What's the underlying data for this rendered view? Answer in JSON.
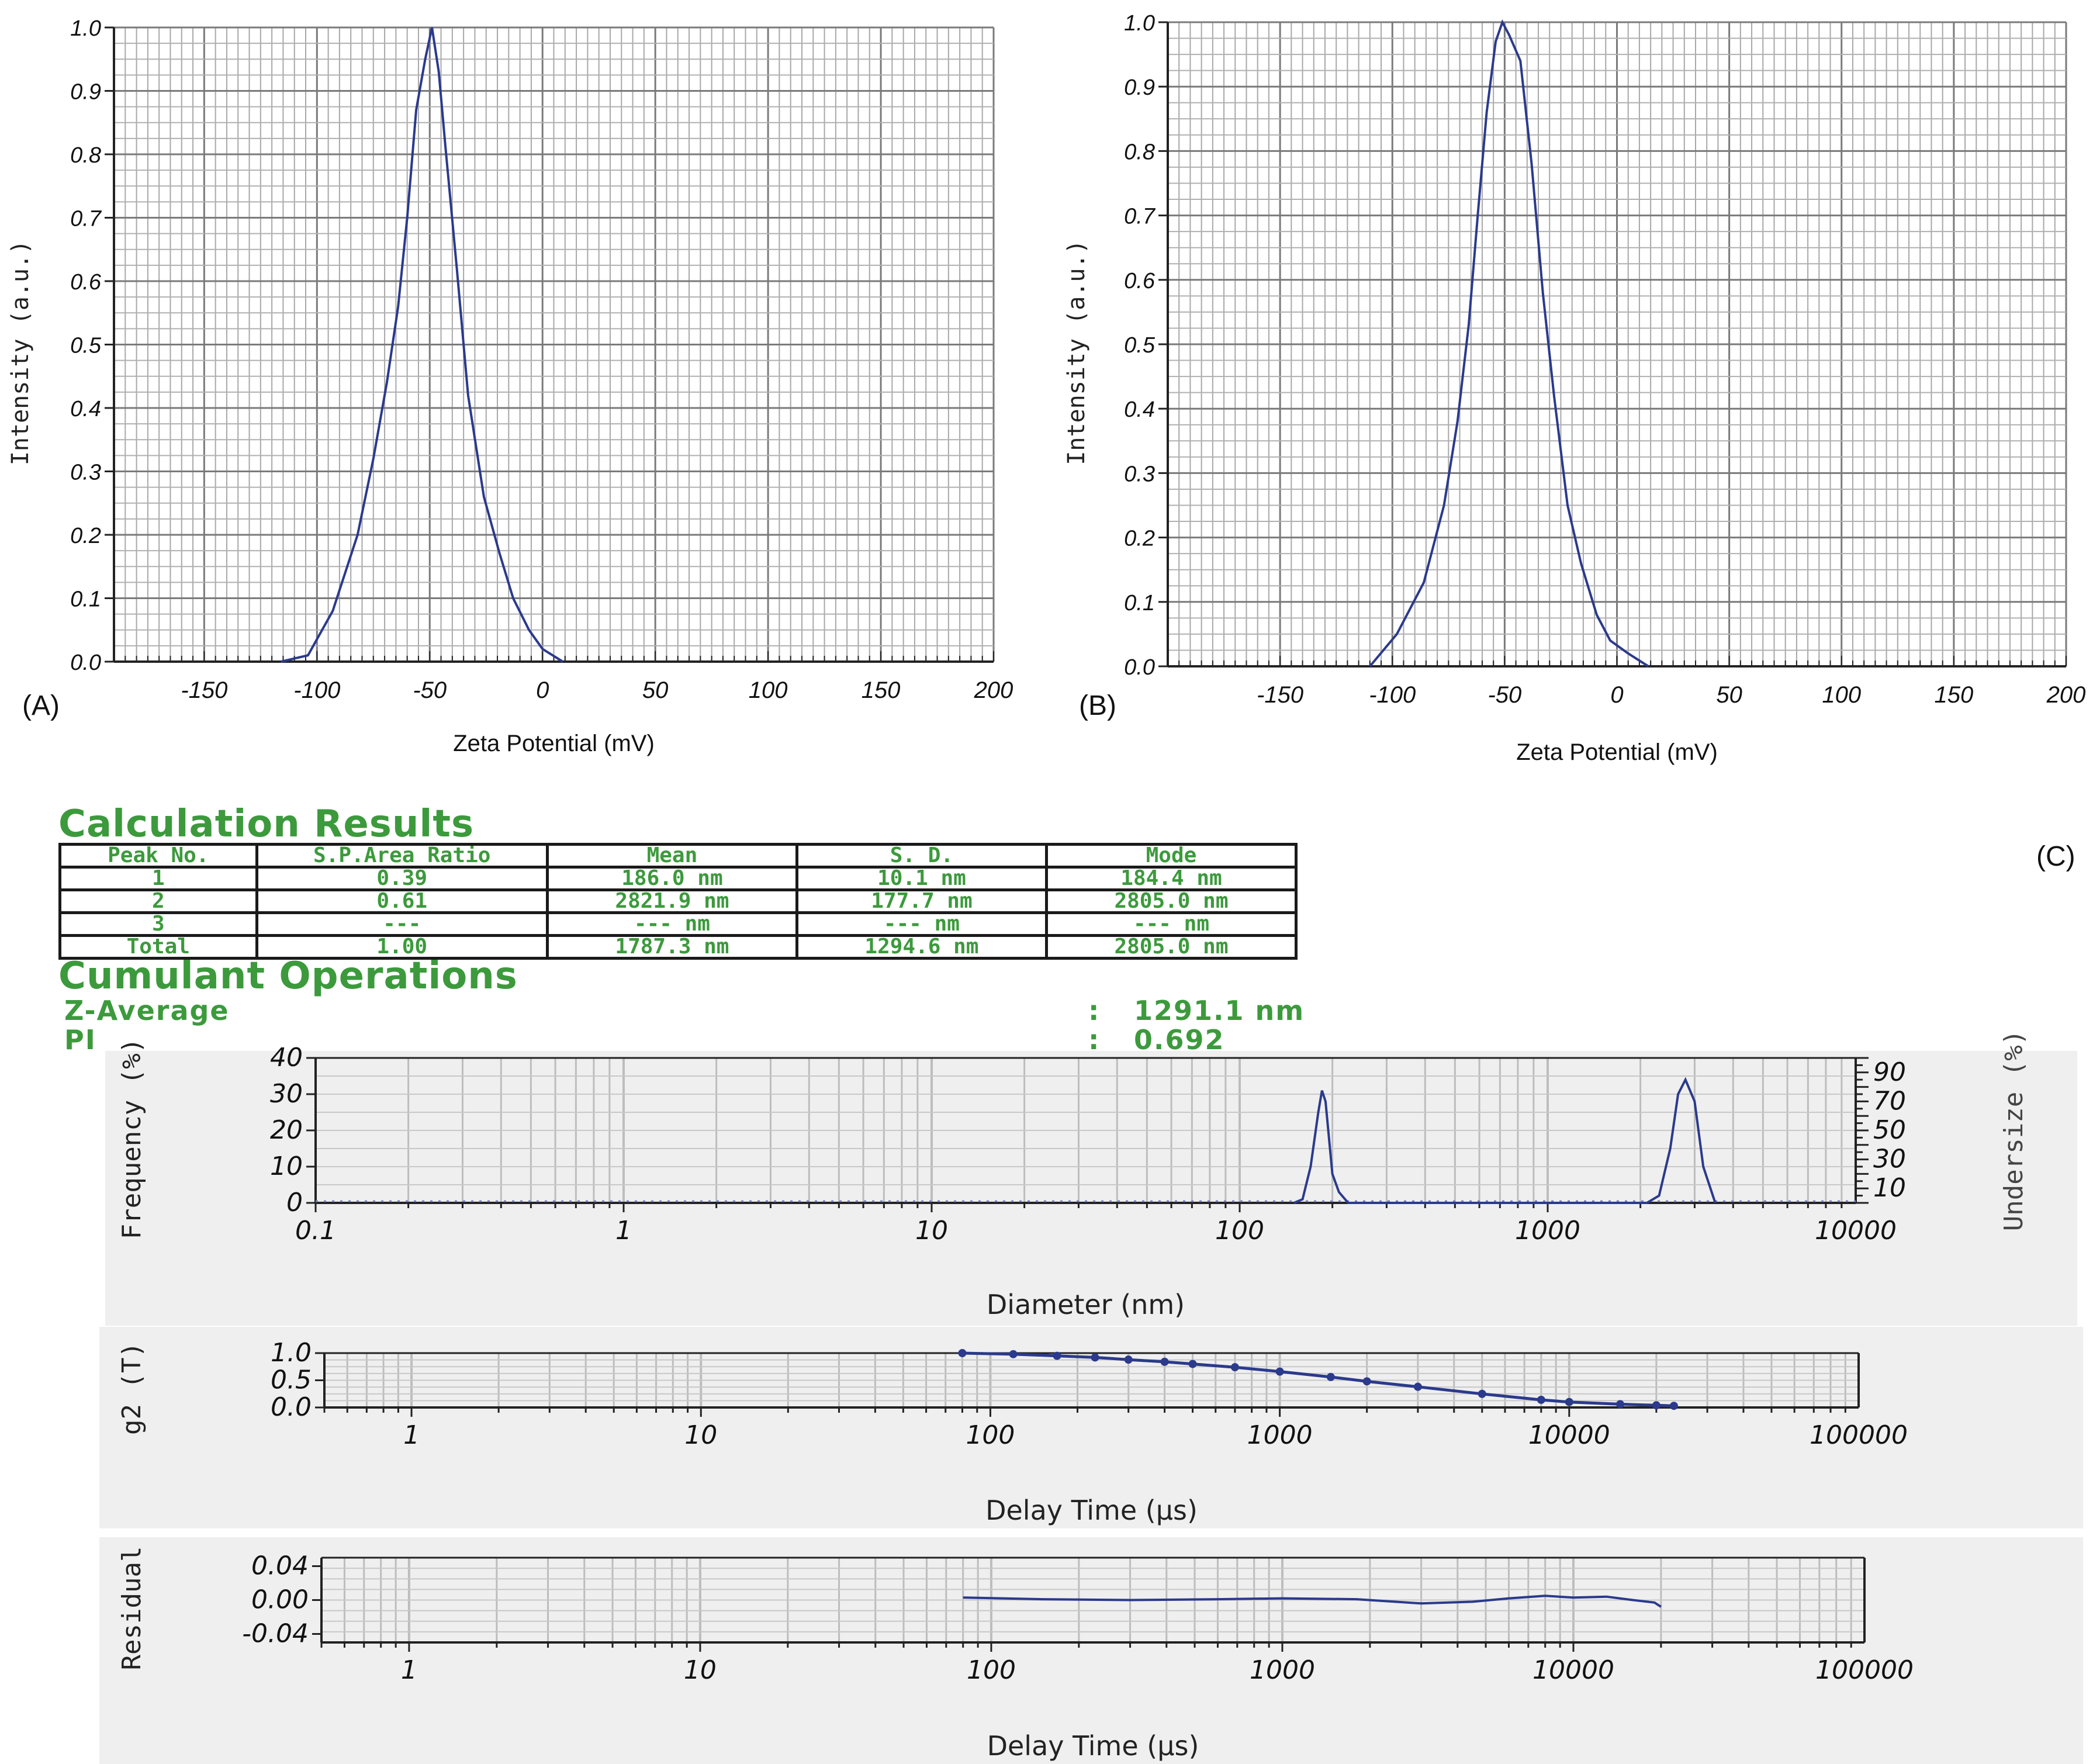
{
  "panel_labels": {
    "a": "(A)",
    "b": "(B)",
    "c": "(C)"
  },
  "results": {
    "title": "Calculation Results",
    "columns": [
      "Peak No.",
      "S.P.Area Ratio",
      "Mean",
      "S. D.",
      "Mode"
    ],
    "rows": [
      [
        "1",
        "0.39",
        "186.0 nm",
        "10.1 nm",
        "184.4 nm"
      ],
      [
        "2",
        "0.61",
        "2821.9 nm",
        "177.7 nm",
        "2805.0 nm"
      ],
      [
        "3",
        "---",
        "--- nm",
        "--- nm",
        "--- nm"
      ],
      [
        "Total",
        "1.00",
        "1787.3 nm",
        "1294.6 nm",
        "2805.0 nm"
      ]
    ]
  },
  "cumulant": {
    "title": "Cumulant Operations",
    "z_label": "Z-Average",
    "z_sep": ":",
    "z_value": "1291.1 nm",
    "pi_label": "PI",
    "pi_sep": ":",
    "pi_value": "0.692"
  },
  "colors": {
    "line": "#2b3a8c",
    "grid": "#9a9a9a",
    "green": "#3c9a3c",
    "panel_bg": "#efefef"
  },
  "chart_data": [
    {
      "id": "A",
      "type": "line",
      "xlabel": "Zeta Potential (mV)",
      "ylabel": "Intensity (a.u.)",
      "xlim": [
        -190,
        200
      ],
      "ylim": [
        0,
        1.0
      ],
      "xticks": [
        -150,
        -100,
        -50,
        0,
        50,
        100,
        150,
        200
      ],
      "xtick_labels": [
        "-150",
        "-100",
        "-50",
        "0",
        "50",
        "100",
        "150",
        "200"
      ],
      "yticks": [
        0,
        0.1,
        0.2,
        0.3,
        0.4,
        0.5,
        0.6,
        0.7,
        0.8,
        0.9,
        1.0
      ],
      "ytick_labels": [
        "0.0",
        "0.1",
        "0.2",
        "0.3",
        "0.4",
        "0.5",
        "0.6",
        "0.7",
        "0.8",
        "0.9",
        "1.0"
      ],
      "grid": true,
      "series": [
        {
          "x": [
            -116,
            -104,
            -93,
            -82,
            -75,
            -69,
            -64,
            -60,
            -56,
            -52,
            -49,
            -46,
            -43,
            -38,
            -33,
            -26,
            -19,
            -13,
            -6,
            0,
            9
          ],
          "y": [
            0,
            0.01,
            0.08,
            0.2,
            0.32,
            0.44,
            0.56,
            0.7,
            0.87,
            0.95,
            1.0,
            0.93,
            0.81,
            0.62,
            0.42,
            0.26,
            0.17,
            0.1,
            0.05,
            0.02,
            0
          ]
        }
      ]
    },
    {
      "id": "B",
      "type": "line",
      "xlabel": "Zeta Potential (mV)",
      "ylabel": "Intensity (a.u.)",
      "xlim": [
        -200,
        200
      ],
      "ylim": [
        0,
        1.0
      ],
      "xticks": [
        -150,
        -100,
        -50,
        0,
        50,
        100,
        150,
        200
      ],
      "xtick_labels": [
        "-150",
        "-100",
        "-50",
        "0",
        "50",
        "100",
        "150",
        "200"
      ],
      "yticks": [
        0,
        0.1,
        0.2,
        0.3,
        0.4,
        0.5,
        0.6,
        0.7,
        0.8,
        0.9,
        1.0
      ],
      "ytick_labels": [
        "0.0",
        "0.1",
        "0.2",
        "0.3",
        "0.4",
        "0.5",
        "0.6",
        "0.7",
        "0.8",
        "0.9",
        "1.0"
      ],
      "grid": true,
      "series": [
        {
          "x": [
            -110,
            -98,
            -86,
            -77,
            -71,
            -66,
            -62,
            -58,
            -54,
            -51,
            -48,
            -43,
            -38,
            -33,
            -28,
            -22,
            -16,
            -9,
            -3,
            5,
            14
          ],
          "y": [
            0,
            0.05,
            0.13,
            0.25,
            0.38,
            0.53,
            0.7,
            0.86,
            0.97,
            1.0,
            0.98,
            0.94,
            0.78,
            0.58,
            0.42,
            0.25,
            0.16,
            0.08,
            0.04,
            0.02,
            0
          ]
        }
      ]
    },
    {
      "id": "C-size",
      "type": "line",
      "xscale": "log",
      "xlabel": "Diameter (nm)",
      "ylabel": "Frequency (%)",
      "y2label": "Undersize (%)",
      "xlim": [
        0.1,
        10000
      ],
      "ylim": [
        0,
        40
      ],
      "xticks": [
        0.1,
        1,
        10,
        100,
        1000,
        10000
      ],
      "xtick_labels": [
        "0.1",
        "1",
        "10",
        "100",
        "1000",
        "10000"
      ],
      "yticks": [
        0,
        10,
        20,
        30,
        40
      ],
      "ytick_labels": [
        "0",
        "10",
        "20",
        "30",
        "40"
      ],
      "y2ticks": [
        10,
        30,
        50,
        70,
        90
      ],
      "y2tick_labels": [
        "10",
        "30",
        "50",
        "70",
        "90"
      ],
      "grid": true,
      "series": [
        {
          "x": [
            150,
            160,
            170,
            180,
            185,
            190,
            200,
            210,
            225,
            2100,
            2300,
            2500,
            2650,
            2800,
            3000,
            3200,
            3500
          ],
          "y": [
            0,
            1,
            10,
            25,
            31,
            28,
            8,
            3,
            0,
            0,
            2,
            15,
            30,
            34,
            28,
            10,
            0
          ]
        }
      ]
    },
    {
      "id": "C-g2",
      "type": "line",
      "xscale": "log",
      "xlabel": "Delay Time (µs)",
      "ylabel": "g2 (T)",
      "xlim": [
        0.5,
        100000
      ],
      "ylim": [
        0,
        1.0
      ],
      "xticks": [
        1,
        10,
        100,
        1000,
        10000,
        100000
      ],
      "xtick_labels": [
        "1",
        "10",
        "100",
        "1000",
        "10000",
        "100000"
      ],
      "yticks": [
        0,
        0.5,
        1.0
      ],
      "ytick_labels": [
        "0.0",
        "0.5",
        "1.0"
      ],
      "grid": true,
      "series": [
        {
          "x": [
            80,
            120,
            170,
            230,
            300,
            400,
            500,
            700,
            1000,
            1500,
            2000,
            3000,
            5000,
            8000,
            10000,
            15000,
            20000,
            23000
          ],
          "y": [
            1.0,
            0.98,
            0.95,
            0.92,
            0.88,
            0.84,
            0.8,
            0.74,
            0.66,
            0.56,
            0.48,
            0.38,
            0.25,
            0.14,
            0.1,
            0.06,
            0.04,
            0.03
          ]
        }
      ]
    },
    {
      "id": "C-residual",
      "type": "line",
      "xscale": "log",
      "xlabel": "Delay Time (µs)",
      "ylabel": "Residual",
      "xlim": [
        0.5,
        100000
      ],
      "ylim": [
        -0.05,
        0.05
      ],
      "xticks": [
        1,
        10,
        100,
        1000,
        10000,
        100000
      ],
      "xtick_labels": [
        "1",
        "10",
        "100",
        "1000",
        "10000",
        "100000"
      ],
      "yticks": [
        -0.04,
        0,
        0.04
      ],
      "ytick_labels": [
        "-0.04",
        "0.00",
        "0.04"
      ],
      "grid": true,
      "series": [
        {
          "x": [
            80,
            150,
            300,
            600,
            1000,
            1800,
            3000,
            4500,
            6000,
            8000,
            10000,
            13000,
            16000,
            19000,
            20000
          ],
          "y": [
            0.003,
            0.001,
            0.0,
            0.001,
            0.002,
            0.001,
            -0.004,
            -0.002,
            0.002,
            0.005,
            0.003,
            0.004,
            0.0,
            -0.003,
            -0.008
          ]
        }
      ]
    }
  ]
}
